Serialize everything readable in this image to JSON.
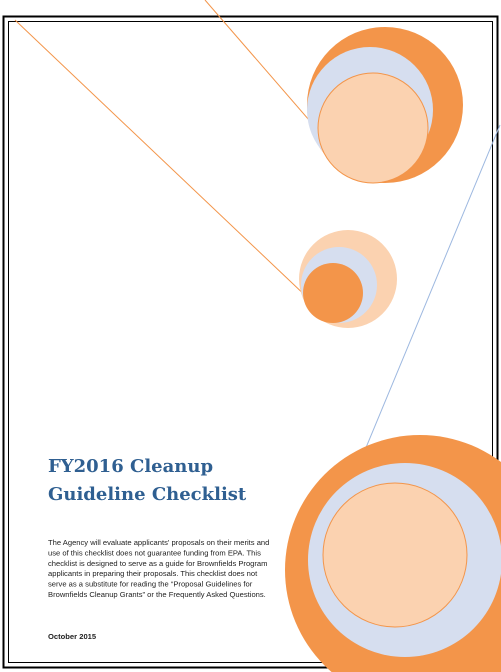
{
  "title_lines": [
    "FY2016 Cleanup",
    "Guideline Checklist"
  ],
  "body_lines": [
    "The Agency will evaluate applicants' proposals on their merits and",
    "use of this checklist does not guarantee funding from EPA. This",
    "checklist is designed to serve as a guide for Brownfields Program",
    "applicants in preparing their proposals. This checklist does not",
    "serve as a substitute for reading the “Proposal Guidelines for",
    "Brownfields Cleanup Grants” or the Frequently Asked Questions."
  ],
  "date": "October 2015"
}
